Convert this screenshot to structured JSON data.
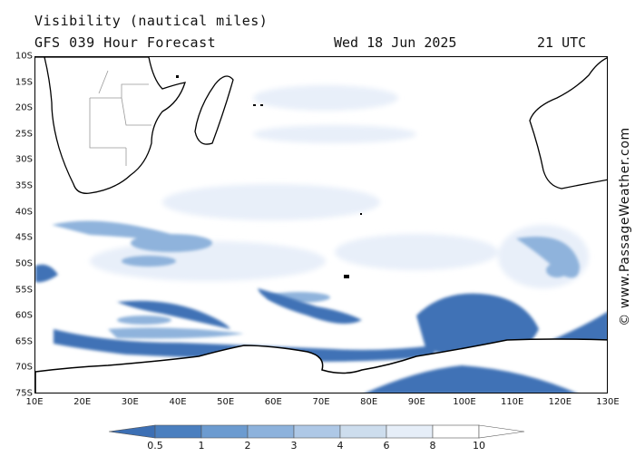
{
  "header": {
    "title": "Visibility (nautical miles)",
    "subtitle": "GFS 039 Hour Forecast",
    "date": "Wed 18 Jun 2025",
    "time": "21 UTC"
  },
  "credit": "© www.PassageWeather.com",
  "axes": {
    "lat_labels": [
      "10S",
      "15S",
      "20S",
      "25S",
      "30S",
      "35S",
      "40S",
      "45S",
      "50S",
      "55S",
      "60S",
      "65S",
      "70S",
      "75S"
    ],
    "lon_labels": [
      "10E",
      "20E",
      "30E",
      "40E",
      "50E",
      "60E",
      "70E",
      "80E",
      "90E",
      "100E",
      "110E",
      "120E",
      "130E"
    ]
  },
  "legend": {
    "labels": [
      "0.5",
      "1",
      "2",
      "3",
      "4",
      "6",
      "8",
      "10"
    ],
    "colors": [
      "#3c6fb4",
      "#4a7fbf",
      "#6c9bd0",
      "#8db2dc",
      "#aec8e6",
      "#cddded",
      "#e6eef8",
      "#ffffff"
    ]
  },
  "colors": {
    "land_outline": "#000000",
    "visibility_low": "#3f72b6",
    "visibility_mid": "#8fb3dc",
    "visibility_high": "#e9f0f9"
  }
}
